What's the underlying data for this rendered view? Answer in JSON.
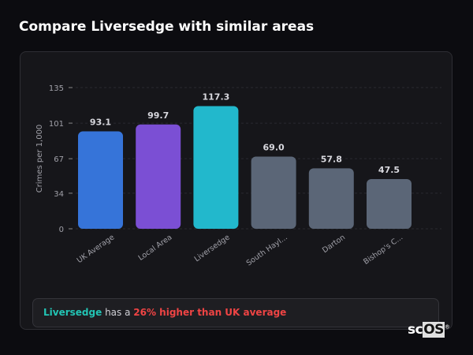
{
  "title": "Compare Liversedge with similar areas",
  "chart_data": {
    "type": "bar",
    "ylabel": "Crimes per 1,000",
    "ylim": [
      0,
      135
    ],
    "yticks": [
      0,
      34,
      67,
      101,
      135
    ],
    "grid": true,
    "categories": [
      "UK Average",
      "Local Area",
      "Liversedge",
      "South Hayl...",
      "Darton",
      "Bishop's C..."
    ],
    "values": [
      93.1,
      99.7,
      117.3,
      69.0,
      57.8,
      47.5
    ],
    "value_labels": [
      "93.1",
      "99.7",
      "117.3",
      "69.0",
      "57.8",
      "47.5"
    ],
    "colors": [
      "#3674d9",
      "#7b4fd4",
      "#22b8cc",
      "#5b6677",
      "#5b6677",
      "#5b6677"
    ]
  },
  "footer": {
    "area": "Liversedge",
    "middle": " has a ",
    "comparison": "26% higher than UK average"
  },
  "logo": {
    "text_a": "sc",
    "text_b": "OS"
  }
}
